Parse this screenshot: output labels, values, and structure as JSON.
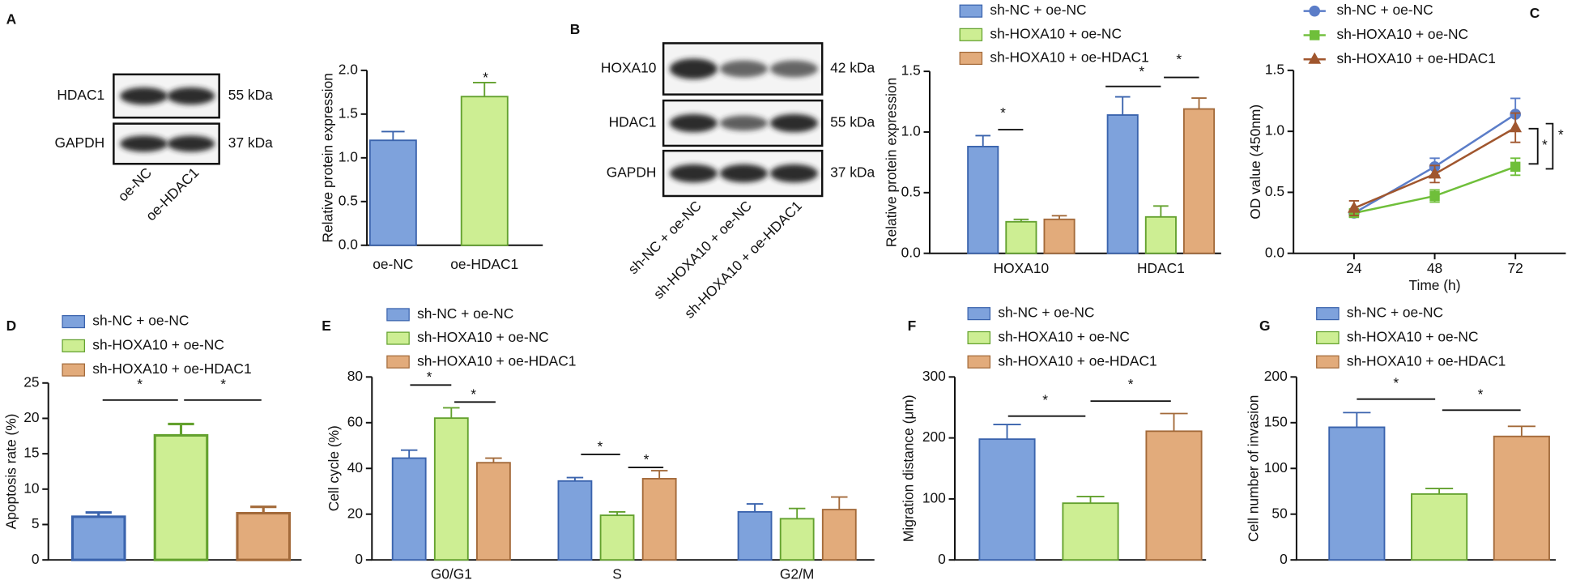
{
  "chart_data": [
    {
      "type": "blot",
      "panel": "A",
      "rows": [
        {
          "name": "HDAC1",
          "size": "55 kDa"
        },
        {
          "name": "GAPDH",
          "size": "37 kDa"
        }
      ],
      "lanes": [
        "oe-NC",
        "oe-HDAC1"
      ]
    },
    {
      "type": "bar",
      "ylabel": "Relative protein expression",
      "categories": [
        "oe-NC",
        "oe-HDAC1"
      ],
      "values": [
        1.2,
        1.7
      ],
      "errors": [
        0.1,
        0.16
      ],
      "colors": [
        "#7ea2dc",
        "#cdee93"
      ],
      "edgecolors": [
        "#3a63ad",
        "#63a12e"
      ],
      "ylim": [
        0,
        2
      ],
      "yticks": [
        {
          "value": 0,
          "label": "0.0"
        },
        {
          "value": 0.5,
          "label": "0.5"
        },
        {
          "value": 1,
          "label": "1.0"
        },
        {
          "value": 1.5,
          "label": "1.5"
        },
        {
          "value": 2,
          "label": "2.0"
        }
      ],
      "annotations": [
        "*"
      ]
    },
    {
      "type": "blot",
      "panel": "B",
      "rows": [
        {
          "name": "HOXA10",
          "size": "42 kDa"
        },
        {
          "name": "HDAC1",
          "size": "55 kDa"
        },
        {
          "name": "GAPDH",
          "size": "37 kDa"
        }
      ],
      "lanes": [
        "sh-NC + oe-NC",
        "sh-HOXA10 + oe-NC",
        "sh-HOXA10 + oe-HDAC1"
      ]
    },
    {
      "type": "bar",
      "ylabel": "Relative protein expression",
      "categories": [
        "HOXA10",
        "HDAC1"
      ],
      "series": [
        {
          "name": "sh-NC + oe-NC",
          "color": "#7ea2dc",
          "edgecolor": "#3a63ad",
          "values": [
            0.88,
            1.14
          ],
          "errors": [
            0.09,
            0.15
          ]
        },
        {
          "name": "sh-HOXA10 + oe-NC",
          "color": "#cdee93",
          "edgecolor": "#63a12e",
          "values": [
            0.26,
            0.3
          ],
          "errors": [
            0.02,
            0.09
          ]
        },
        {
          "name": "sh-HOXA10 + oe-HDAC1",
          "color": "#e2ab7b",
          "edgecolor": "#a36a3a",
          "values": [
            0.28,
            1.19
          ],
          "errors": [
            0.03,
            0.09
          ]
        }
      ],
      "ylim": [
        0,
        1.5
      ],
      "yticks": [
        {
          "value": 0,
          "label": "0.0"
        },
        {
          "value": 0.5,
          "label": "0.5"
        },
        {
          "value": 1,
          "label": "1.0"
        },
        {
          "value": 1.5,
          "label": "1.5"
        }
      ],
      "annotations": [
        "*",
        "*",
        "*"
      ]
    },
    {
      "type": "line",
      "panel": "C",
      "xlabel": "Time (h)",
      "ylabel": "OD value (450nm)",
      "x": [
        24,
        48,
        72
      ],
      "series": [
        {
          "name": "sh-NC + oe-NC",
          "color": "#5b7dc8",
          "marker": "circle",
          "values": [
            0.33,
            0.71,
            1.14
          ],
          "errors": [
            0.03,
            0.07,
            0.13
          ]
        },
        {
          "name": "sh-HOXA10 + oe-NC",
          "color": "#6fbf3a",
          "marker": "square",
          "values": [
            0.33,
            0.47,
            0.71
          ],
          "errors": [
            0.03,
            0.05,
            0.07
          ]
        },
        {
          "name": "sh-HOXA10 + oe-HDAC1",
          "color": "#a0562e",
          "marker": "triangle",
          "values": [
            0.37,
            0.65,
            1.03
          ],
          "errors": [
            0.06,
            0.07,
            0.12
          ]
        }
      ],
      "xlim": [
        6,
        87
      ],
      "xticks": [
        24,
        48,
        72
      ],
      "ylim": [
        0,
        1.5
      ],
      "yticks": [
        {
          "value": 0,
          "label": "0.0"
        },
        {
          "value": 0.5,
          "label": "0.5"
        },
        {
          "value": 1,
          "label": "1.0"
        },
        {
          "value": 1.5,
          "label": "1.5"
        }
      ],
      "annotations": [
        "*",
        "*"
      ]
    },
    {
      "type": "bar",
      "panel": "D",
      "ylabel": "Apoptosis rate (%)",
      "categories": [
        null
      ],
      "series": [
        {
          "name": "sh-NC + oe-NC",
          "color": "#7ea2dc",
          "edgecolor": "#3a63ad",
          "values": [
            6.1
          ],
          "errors": [
            0.6
          ]
        },
        {
          "name": "sh-HOXA10 + oe-NC",
          "color": "#cdee93",
          "edgecolor": "#63a12e",
          "values": [
            17.6
          ],
          "errors": [
            1.6
          ]
        },
        {
          "name": "sh-HOXA10 + oe-HDAC1",
          "color": "#e2ab7b",
          "edgecolor": "#a36a3a",
          "values": [
            6.6
          ],
          "errors": [
            0.9
          ]
        }
      ],
      "ylim": [
        0,
        25
      ],
      "yticks": [
        0,
        5,
        10,
        15,
        20,
        25
      ],
      "annotations": [
        "*",
        "*"
      ]
    },
    {
      "type": "bar",
      "panel": "E",
      "ylabel": "Cell cycle (%)",
      "categories": [
        "G0/G1",
        "S",
        "G2/M"
      ],
      "series": [
        {
          "name": "sh-NC + oe-NC",
          "color": "#7ea2dc",
          "edgecolor": "#3a63ad",
          "values": [
            44.5,
            34.5,
            21
          ],
          "errors": [
            3.5,
            1.5,
            3.5
          ]
        },
        {
          "name": "sh-HOXA10 + oe-NC",
          "color": "#cdee93",
          "edgecolor": "#63a12e",
          "values": [
            62,
            19.5,
            18
          ],
          "errors": [
            4.5,
            1.5,
            4.5
          ]
        },
        {
          "name": "sh-HOXA10 + oe-HDAC1",
          "color": "#e2ab7b",
          "edgecolor": "#a36a3a",
          "values": [
            42.5,
            35.5,
            22
          ],
          "errors": [
            2,
            3.5,
            5.5
          ]
        }
      ],
      "ylim": [
        0,
        80
      ],
      "yticks": [
        0,
        20,
        40,
        60,
        80
      ],
      "annotations": [
        "*",
        "*",
        "*",
        "*"
      ]
    },
    {
      "type": "bar",
      "panel": "F",
      "ylabel": "Migration distance (μm)",
      "categories": [
        null
      ],
      "series": [
        {
          "name": "sh-NC + oe-NC",
          "color": "#7ea2dc",
          "edgecolor": "#3a63ad",
          "values": [
            198
          ],
          "errors": [
            24
          ]
        },
        {
          "name": "sh-HOXA10 + oe-NC",
          "color": "#cdee93",
          "edgecolor": "#63a12e",
          "values": [
            93
          ],
          "errors": [
            11
          ]
        },
        {
          "name": "sh-HOXA10 + oe-HDAC1",
          "color": "#e2ab7b",
          "edgecolor": "#a36a3a",
          "values": [
            211
          ],
          "errors": [
            29
          ]
        }
      ],
      "ylim": [
        0,
        300
      ],
      "yticks": [
        0,
        100,
        200,
        300
      ],
      "annotations": [
        "*",
        "*"
      ]
    },
    {
      "type": "bar",
      "panel": "G",
      "ylabel": "Cell number of invasion",
      "categories": [
        null
      ],
      "series": [
        {
          "name": "sh-NC + oe-NC",
          "color": "#7ea2dc",
          "edgecolor": "#3a63ad",
          "values": [
            145
          ],
          "errors": [
            16
          ]
        },
        {
          "name": "sh-HOXA10 + oe-NC",
          "color": "#cdee93",
          "edgecolor": "#63a12e",
          "values": [
            72
          ],
          "errors": [
            6
          ]
        },
        {
          "name": "sh-HOXA10 + oe-HDAC1",
          "color": "#e2ab7b",
          "edgecolor": "#a36a3a",
          "values": [
            135
          ],
          "errors": [
            11
          ]
        }
      ],
      "ylim": [
        0,
        200
      ],
      "yticks": [
        0,
        50,
        100,
        150,
        200
      ],
      "annotations": [
        "*",
        "*"
      ]
    }
  ]
}
